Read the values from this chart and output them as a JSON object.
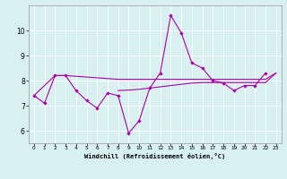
{
  "xlabel": "Windchill (Refroidissement éolien,°C)",
  "bg_color": "#d8f0f0",
  "grid_color": "#ffffff",
  "line_color": "#aa00aa",
  "xlim": [
    -0.5,
    23.5
  ],
  "ylim": [
    5.5,
    11.0
  ],
  "xticks": [
    0,
    1,
    2,
    3,
    4,
    5,
    6,
    7,
    8,
    9,
    10,
    11,
    12,
    13,
    14,
    15,
    16,
    17,
    18,
    19,
    20,
    21,
    22,
    23
  ],
  "yticks": [
    6,
    7,
    8,
    9,
    10
  ],
  "line1_x": [
    0,
    1,
    2,
    3,
    4,
    5,
    6,
    7,
    8,
    9,
    10,
    11,
    12,
    13,
    14,
    15,
    16,
    17,
    18,
    19,
    20,
    21,
    22
  ],
  "line1_y": [
    7.4,
    7.1,
    8.2,
    8.2,
    7.6,
    7.2,
    6.9,
    7.5,
    7.4,
    5.9,
    6.4,
    7.7,
    8.3,
    10.6,
    9.9,
    8.7,
    8.5,
    8.0,
    7.9,
    7.6,
    7.8,
    7.8,
    8.3
  ],
  "line2_x": [
    0,
    2,
    3,
    8,
    10,
    11,
    12,
    13,
    14,
    15,
    16,
    17,
    18,
    19,
    20,
    21,
    22,
    23
  ],
  "line2_y": [
    7.4,
    8.2,
    8.2,
    8.05,
    8.05,
    8.05,
    8.05,
    8.05,
    8.05,
    8.05,
    8.05,
    8.05,
    8.05,
    8.05,
    8.05,
    8.05,
    8.05,
    8.3
  ],
  "line3_x": [
    8,
    9,
    10,
    11,
    12,
    13,
    14,
    15,
    16,
    17,
    18,
    19,
    20,
    21,
    22,
    23
  ],
  "line3_y": [
    7.6,
    7.62,
    7.65,
    7.7,
    7.75,
    7.8,
    7.85,
    7.9,
    7.92,
    7.92,
    7.92,
    7.92,
    7.92,
    7.92,
    7.92,
    8.3
  ]
}
